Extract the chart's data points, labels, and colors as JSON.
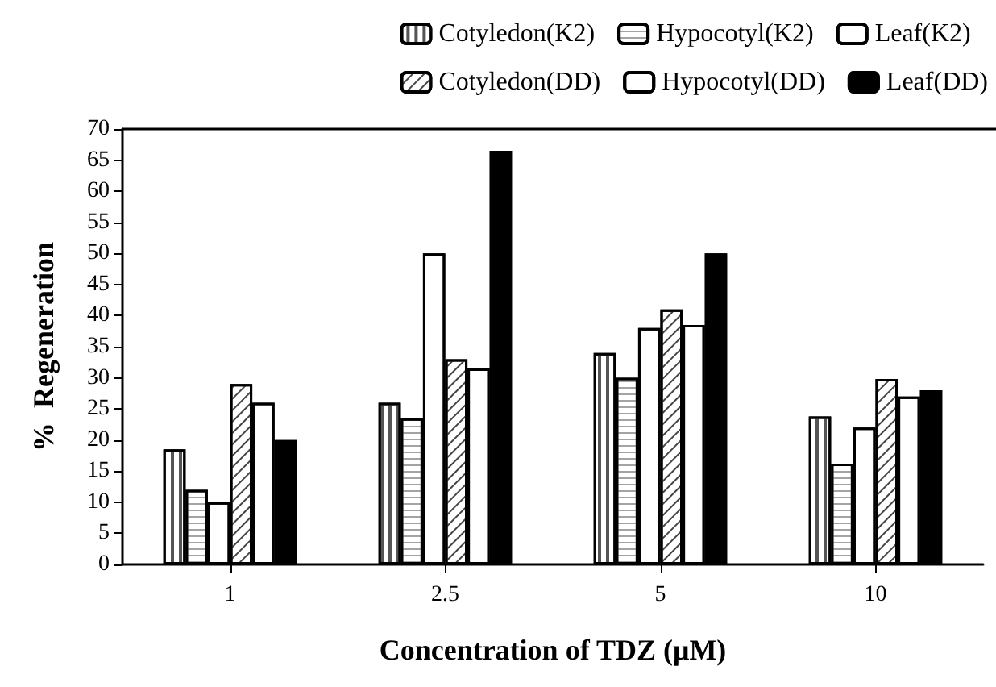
{
  "chart_data": {
    "type": "bar",
    "xlabel": "Concentration of TDZ (μM)",
    "ylabel": "%  Regeneration",
    "categories": [
      "1",
      "2.5",
      "5",
      "10"
    ],
    "series": [
      {
        "name": "Cotyledon(K2)",
        "color": "#ffffff",
        "values": [
          18.5,
          26,
          34,
          23.8
        ]
      },
      {
        "name": "Hypocotyl(K2)",
        "color": "#ffffff",
        "values": [
          12,
          23.5,
          30,
          16.2
        ]
      },
      {
        "name": "Leaf(K2)",
        "color": "#ffffff",
        "values": [
          10,
          50,
          38,
          22
        ]
      },
      {
        "name": "Cotyledon(DD)",
        "color": "#ffffff",
        "values": [
          29,
          33,
          41,
          29.8
        ]
      },
      {
        "name": "Hypocotyl(DD)",
        "color": "#ffffff",
        "values": [
          26,
          31.5,
          38.5,
          27
        ]
      },
      {
        "name": "Leaf(DD)",
        "color": "#000000",
        "values": [
          20,
          66.5,
          50,
          28
        ]
      }
    ],
    "ylim": [
      0,
      70
    ],
    "yticks": [
      0,
      5,
      10,
      15,
      20,
      25,
      30,
      35,
      40,
      45,
      50,
      55,
      60,
      65,
      70
    ],
    "grid": false,
    "legend": "top right"
  }
}
